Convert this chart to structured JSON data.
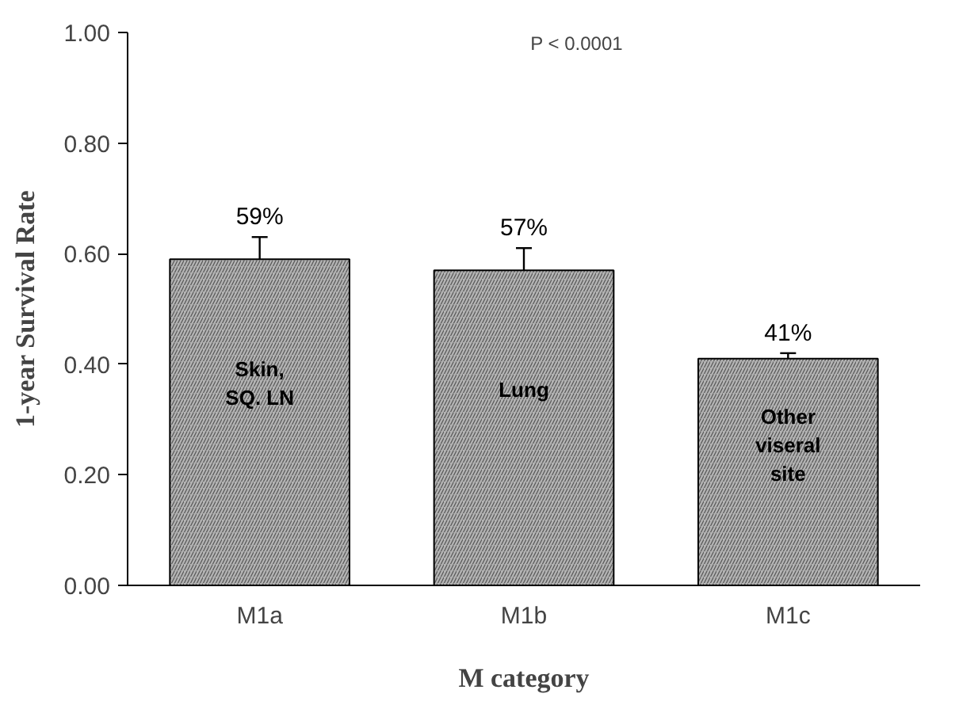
{
  "chart_data": {
    "type": "bar",
    "xlabel": "M category",
    "ylabel": "1-year Survival Rate",
    "categories": [
      "M1a",
      "M1b",
      "M1c"
    ],
    "values": [
      0.59,
      0.57,
      0.41
    ],
    "color": "#b3b3b3",
    "errors": [
      [
        0.59,
        0.63
      ],
      [
        0.57,
        0.61
      ],
      [
        0.41,
        0.42
      ]
    ],
    "value_labels": [
      "59%",
      "57%",
      "41%"
    ],
    "ylim": [
      0,
      1.0
    ],
    "yticks": [
      {
        "value": 0,
        "label": "0.00"
      },
      {
        "value": 0.2,
        "label": "0.20"
      },
      {
        "value": 0.4,
        "label": "0.40"
      },
      {
        "value": 0.6,
        "label": "0.60"
      },
      {
        "value": 0.8,
        "label": "0.80"
      },
      {
        "value": 1.0,
        "label": "1.00"
      }
    ],
    "grid": false,
    "annotations": [
      "P < 0.0001",
      "Skin,\nSQ. LN",
      "Lung",
      "Other\nviseral\nsite"
    ]
  }
}
